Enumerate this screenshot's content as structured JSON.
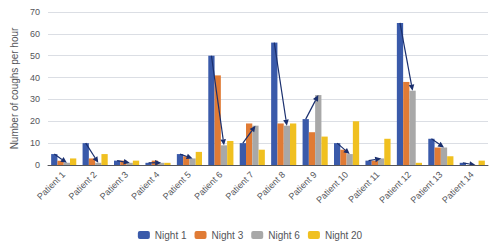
{
  "chart_data": {
    "type": "bar",
    "categories": [
      "Patient 1",
      "Patient 2",
      "Patient 3",
      "Patient 4",
      "Patient 5",
      "Patient 6",
      "Patient 7",
      "Patient 8",
      "Patient 9",
      "Patient 10",
      "Patient 11",
      "Patient 12",
      "Patient 13",
      "Patient 14"
    ],
    "series": [
      {
        "name": "Night 1",
        "color": "#3a5aaa",
        "values": [
          5,
          10,
          2,
          1,
          5,
          50,
          10,
          56,
          21,
          10,
          2,
          65,
          12,
          1
        ]
      },
      {
        "name": "Night 3",
        "color": "#e07b35",
        "values": [
          2,
          3,
          2,
          2,
          4,
          41,
          19,
          19,
          15,
          7,
          2,
          38,
          8,
          0
        ]
      },
      {
        "name": "Night 6",
        "color": "#a8a8a8",
        "values": [
          1,
          1,
          1,
          1,
          3,
          9,
          18,
          18,
          32,
          5,
          3,
          34,
          8,
          0
        ]
      },
      {
        "name": "Night 20",
        "color": "#f0c020",
        "values": [
          3,
          5,
          2,
          1,
          6,
          11,
          7,
          19,
          13,
          20,
          12,
          1,
          4,
          2
        ]
      }
    ],
    "arrows": [
      {
        "from": "Night 1",
        "to": "Night 6",
        "color": "#1a2f6e"
      }
    ],
    "ylabel": "Number of coughs per hour",
    "ylim": [
      0,
      70
    ],
    "yticks": [
      0,
      10,
      20,
      30,
      40,
      50,
      60,
      70
    ],
    "grid": true,
    "legend": "bottom"
  }
}
